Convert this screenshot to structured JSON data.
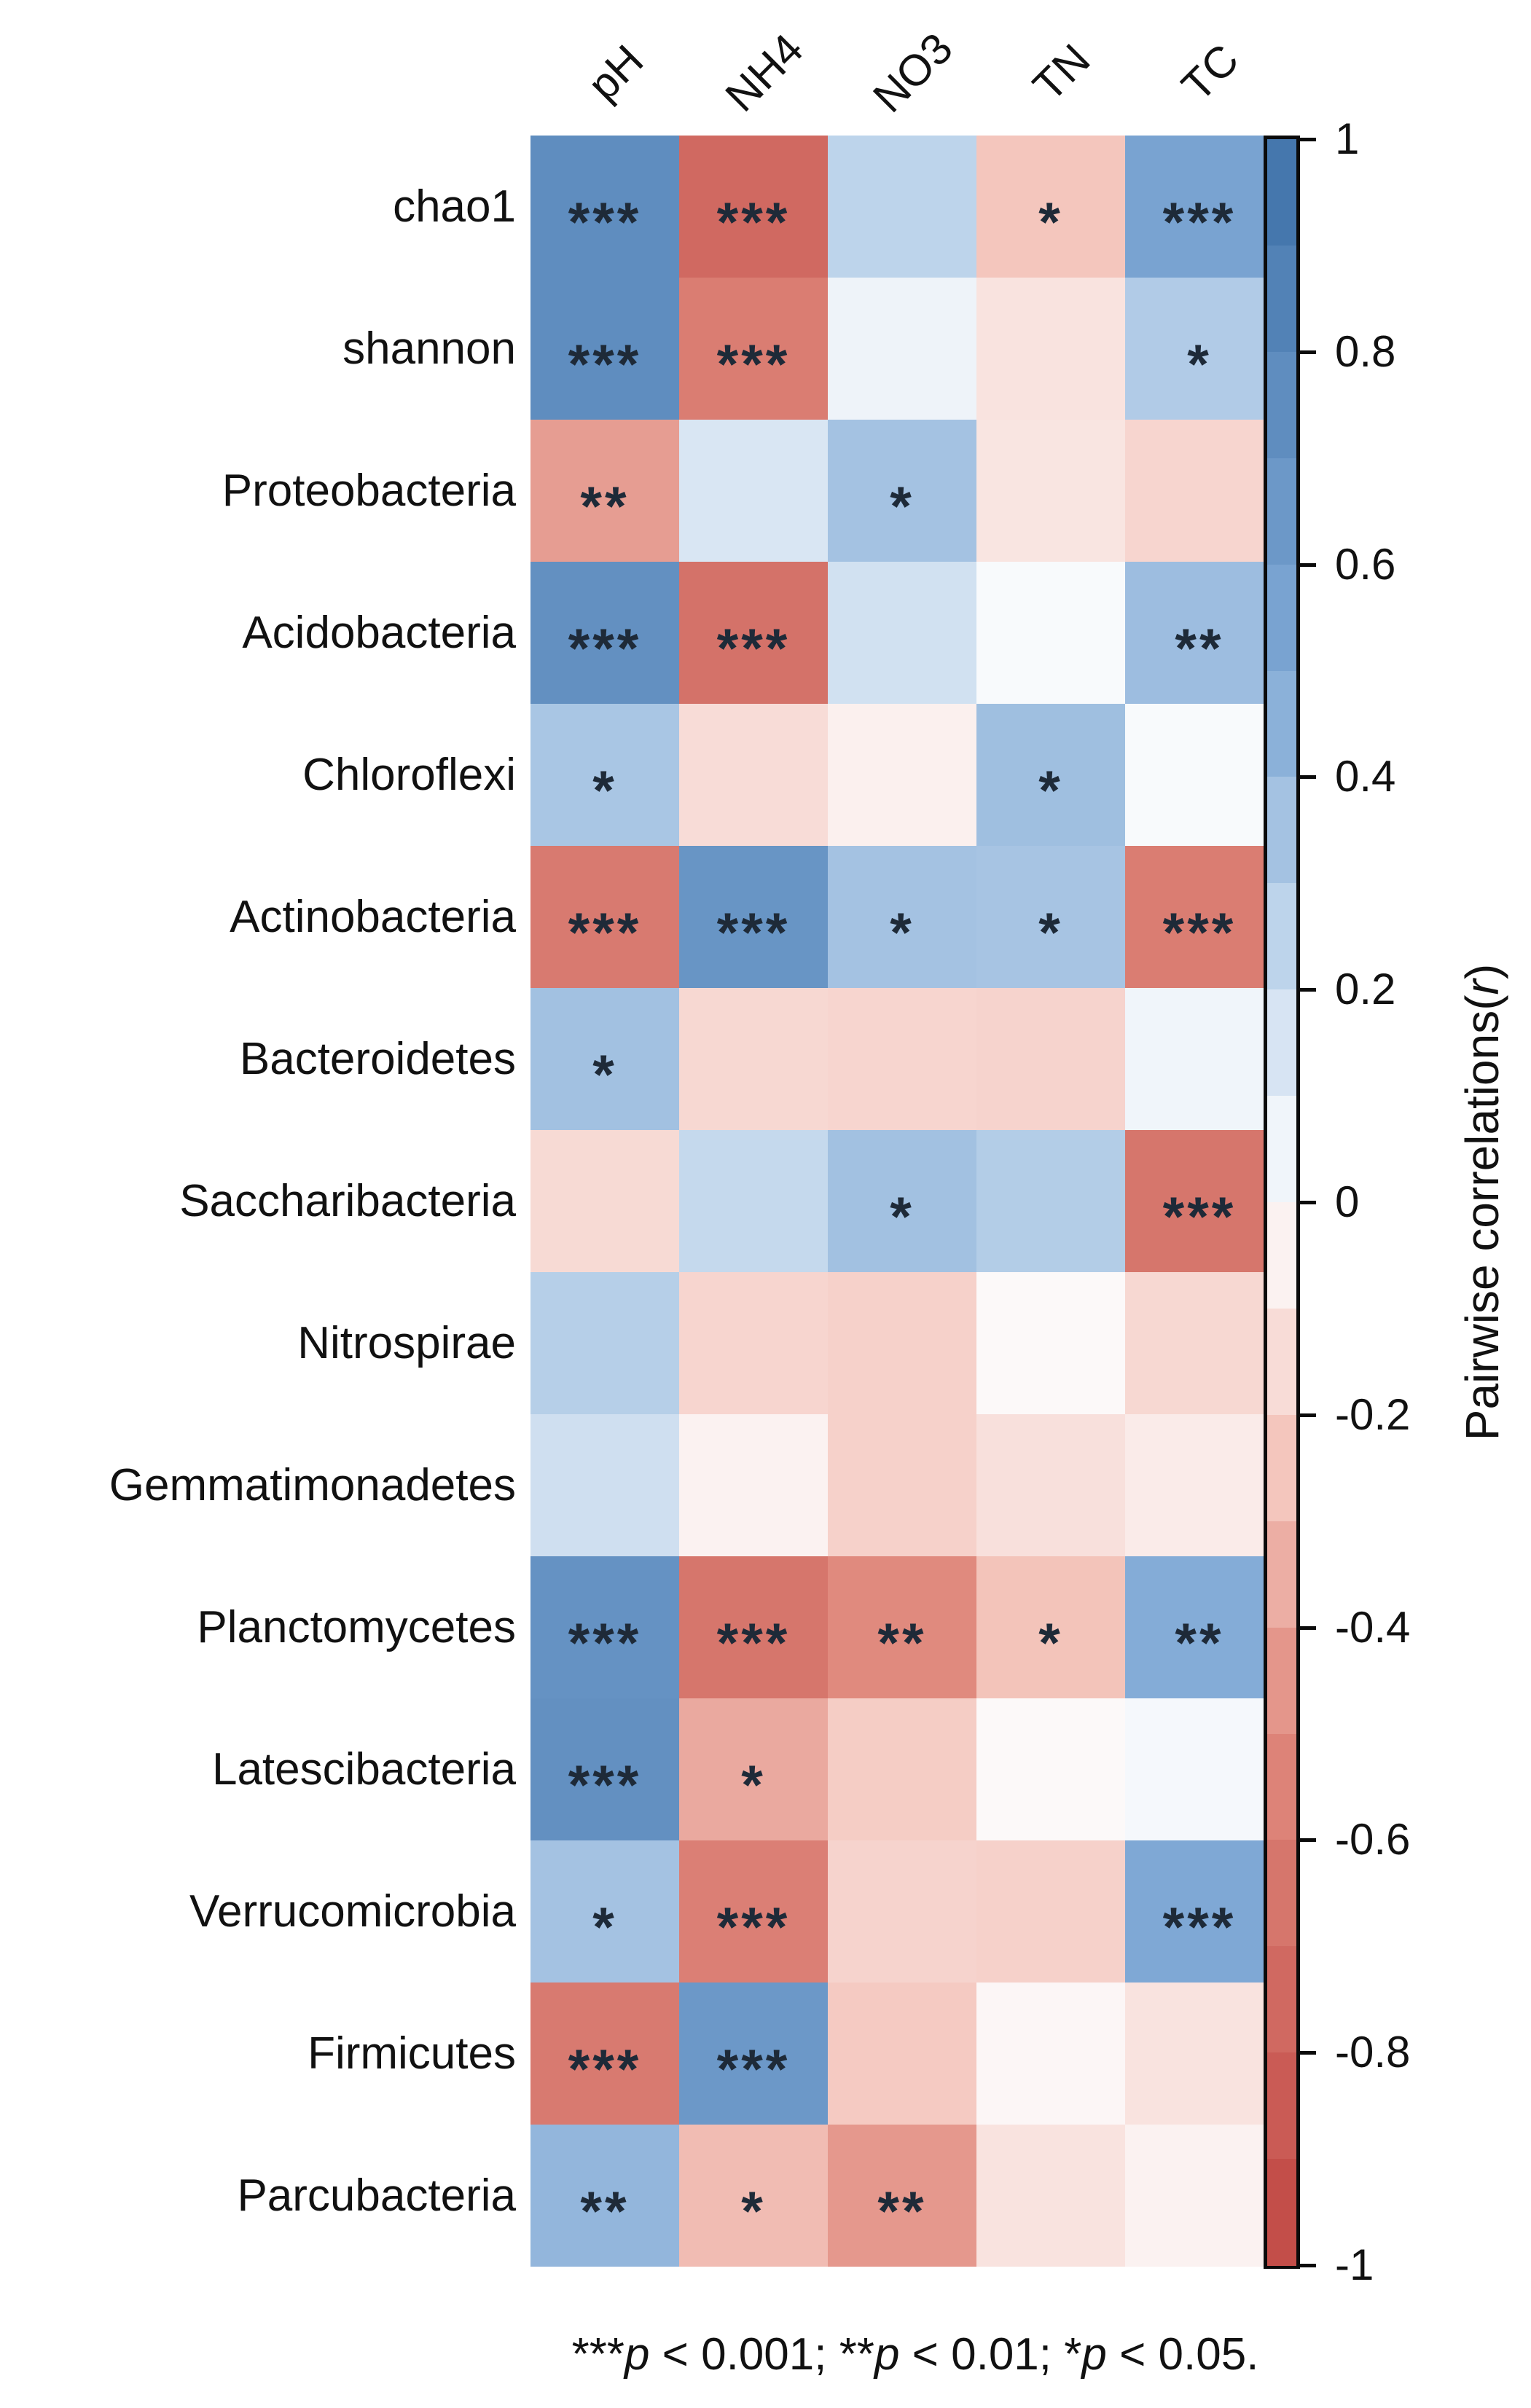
{
  "chart_data": {
    "type": "heatmap",
    "title": "",
    "x_categories": [
      "pH",
      "NH4",
      "NO3",
      "TN",
      "TC"
    ],
    "y_categories": [
      "chao1",
      "shannon",
      "Proteobacteria",
      "Acidobacteria",
      "Chloroflexi",
      "Actinobacteria",
      "Bacteroidetes",
      "Saccharibacteria",
      "Nitrospirae",
      "Gemmatimonadetes",
      "Planctomycetes",
      "Latescibacteria",
      "Verrucomicrobia",
      "Firmicutes",
      "Parcubacteria"
    ],
    "values": [
      [
        0.75,
        -0.75,
        0.25,
        -0.25,
        0.55
      ],
      [
        0.75,
        -0.6,
        0.06,
        -0.12,
        0.3
      ],
      [
        -0.42,
        0.14,
        0.35,
        -0.11,
        -0.18
      ],
      [
        0.72,
        -0.68,
        0.17,
        0.02,
        0.38
      ],
      [
        0.33,
        -0.15,
        -0.06,
        0.37,
        0.02
      ],
      [
        -0.62,
        0.68,
        0.35,
        0.34,
        -0.6
      ],
      [
        0.36,
        -0.17,
        -0.18,
        -0.19,
        0.05
      ],
      [
        -0.16,
        0.22,
        0.36,
        0.29,
        -0.65
      ],
      [
        0.28,
        -0.18,
        -0.2,
        -0.02,
        -0.17
      ],
      [
        0.18,
        -0.05,
        -0.2,
        -0.13,
        -0.08
      ],
      [
        0.7,
        -0.65,
        -0.5,
        -0.26,
        0.48
      ],
      [
        0.72,
        -0.37,
        -0.22,
        -0.02,
        0.03
      ],
      [
        0.35,
        -0.58,
        -0.19,
        -0.2,
        0.5
      ],
      [
        -0.62,
        0.65,
        -0.23,
        -0.03,
        -0.12
      ],
      [
        0.42,
        -0.29,
        -0.44,
        -0.12,
        -0.05
      ]
    ],
    "significance": [
      [
        "***",
        "***",
        "",
        "*",
        "***"
      ],
      [
        "***",
        "***",
        "",
        "",
        "*"
      ],
      [
        "**",
        "",
        "*",
        "",
        ""
      ],
      [
        "***",
        "***",
        "",
        "",
        "**"
      ],
      [
        "*",
        "",
        "",
        "*",
        ""
      ],
      [
        "***",
        "***",
        "*",
        "*",
        "***"
      ],
      [
        "*",
        "",
        "",
        "",
        ""
      ],
      [
        "",
        "",
        "*",
        "",
        "***"
      ],
      [
        "",
        "",
        "",
        "",
        ""
      ],
      [
        "",
        "",
        "",
        "",
        ""
      ],
      [
        "***",
        "***",
        "**",
        "*",
        "**"
      ],
      [
        "***",
        "*",
        "",
        "",
        ""
      ],
      [
        "*",
        "***",
        "",
        "",
        "***"
      ],
      [
        "***",
        "***",
        "",
        "",
        ""
      ],
      [
        "**",
        "*",
        "**",
        "",
        ""
      ]
    ],
    "star_color": "#1e2a38",
    "colormap": {
      "stops": [
        {
          "r": 1,
          "color": "#3F72A8"
        },
        {
          "r": 0.5,
          "color": "#7FA8D5"
        },
        {
          "r": 0.25,
          "color": "#BDD4EB"
        },
        {
          "r": 0,
          "color": "#FDFDFE"
        },
        {
          "r": -0.25,
          "color": "#F4C6BD"
        },
        {
          "r": -0.5,
          "color": "#E08A7E"
        },
        {
          "r": -1,
          "color": "#C04743"
        }
      ]
    },
    "colorbar": {
      "range": [
        -1,
        1
      ],
      "steps": 20,
      "ticks": [
        "1",
        "0.8",
        "0.6",
        "0.4",
        "0.2",
        "0",
        "-0.2",
        "-0.4",
        "-0.6",
        "-0.8",
        "-1"
      ],
      "tick_values": [
        1,
        0.8,
        0.6,
        0.4,
        0.2,
        0,
        -0.2,
        -0.4,
        -0.6,
        -0.8,
        -1
      ],
      "label_segments": [
        {
          "text": "Pairwise correlations(",
          "italic": false
        },
        {
          "text": "r",
          "italic": true
        },
        {
          "text": ")",
          "italic": false
        }
      ],
      "position": "right"
    },
    "footnote_segments": [
      {
        "text": "***",
        "italic": false
      },
      {
        "text": "p",
        "italic": true
      },
      {
        "text": " < 0.001; **",
        "italic": false
      },
      {
        "text": "p",
        "italic": true
      },
      {
        "text": " < 0.01; *",
        "italic": false
      },
      {
        "text": "p",
        "italic": true
      },
      {
        "text": " < 0.05.",
        "italic": false
      }
    ],
    "grid": false,
    "legend_position": "right"
  }
}
